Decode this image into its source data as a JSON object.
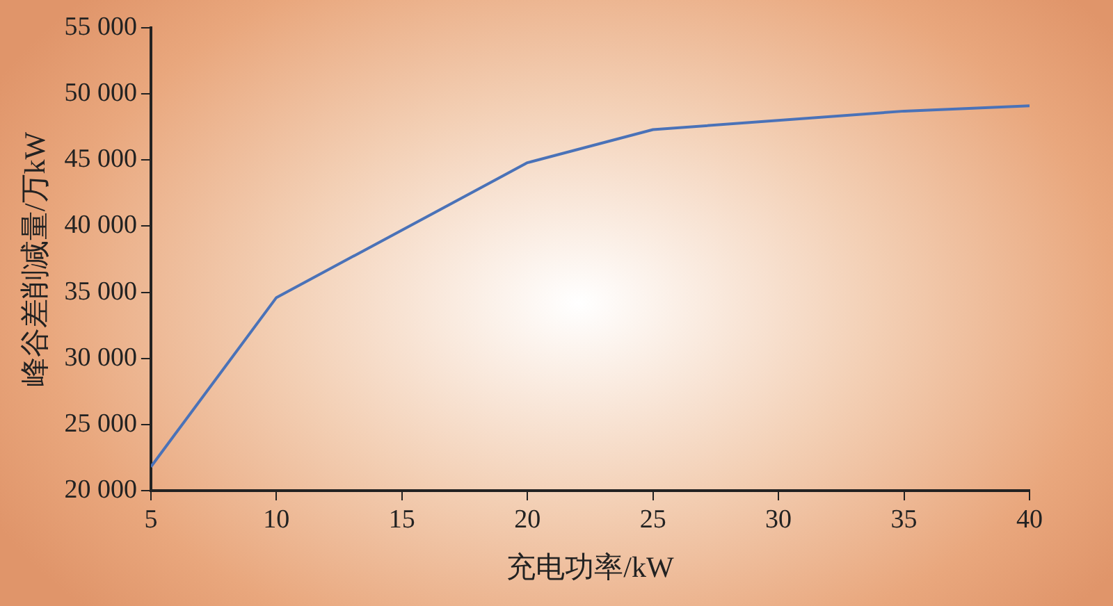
{
  "chart_data": {
    "type": "line",
    "xlabel": "充电功率/kW",
    "ylabel": "峰谷差削减量/万kW",
    "x": [
      5,
      10,
      20,
      25,
      35,
      40
    ],
    "series": [
      {
        "color": "#4a72b8",
        "values": [
          21800,
          34600,
          44800,
          47300,
          48700,
          49100
        ]
      }
    ],
    "xlim": [
      5,
      40
    ],
    "xticks": [
      5,
      10,
      15,
      20,
      25,
      30,
      35,
      40
    ],
    "ylim": [
      20000,
      55000
    ],
    "yticks": [
      {
        "value": 20000,
        "label": "20 000"
      },
      {
        "value": 25000,
        "label": "25 000"
      },
      {
        "value": 30000,
        "label": "30 000"
      },
      {
        "value": 35000,
        "label": "35 000"
      },
      {
        "value": 40000,
        "label": "40 000"
      },
      {
        "value": 45000,
        "label": "45 000"
      },
      {
        "value": 50000,
        "label": "50 000"
      },
      {
        "value": 55000,
        "label": "55 000"
      }
    ],
    "grid": false,
    "legend": false,
    "marker": "none",
    "line_style": "solid"
  }
}
